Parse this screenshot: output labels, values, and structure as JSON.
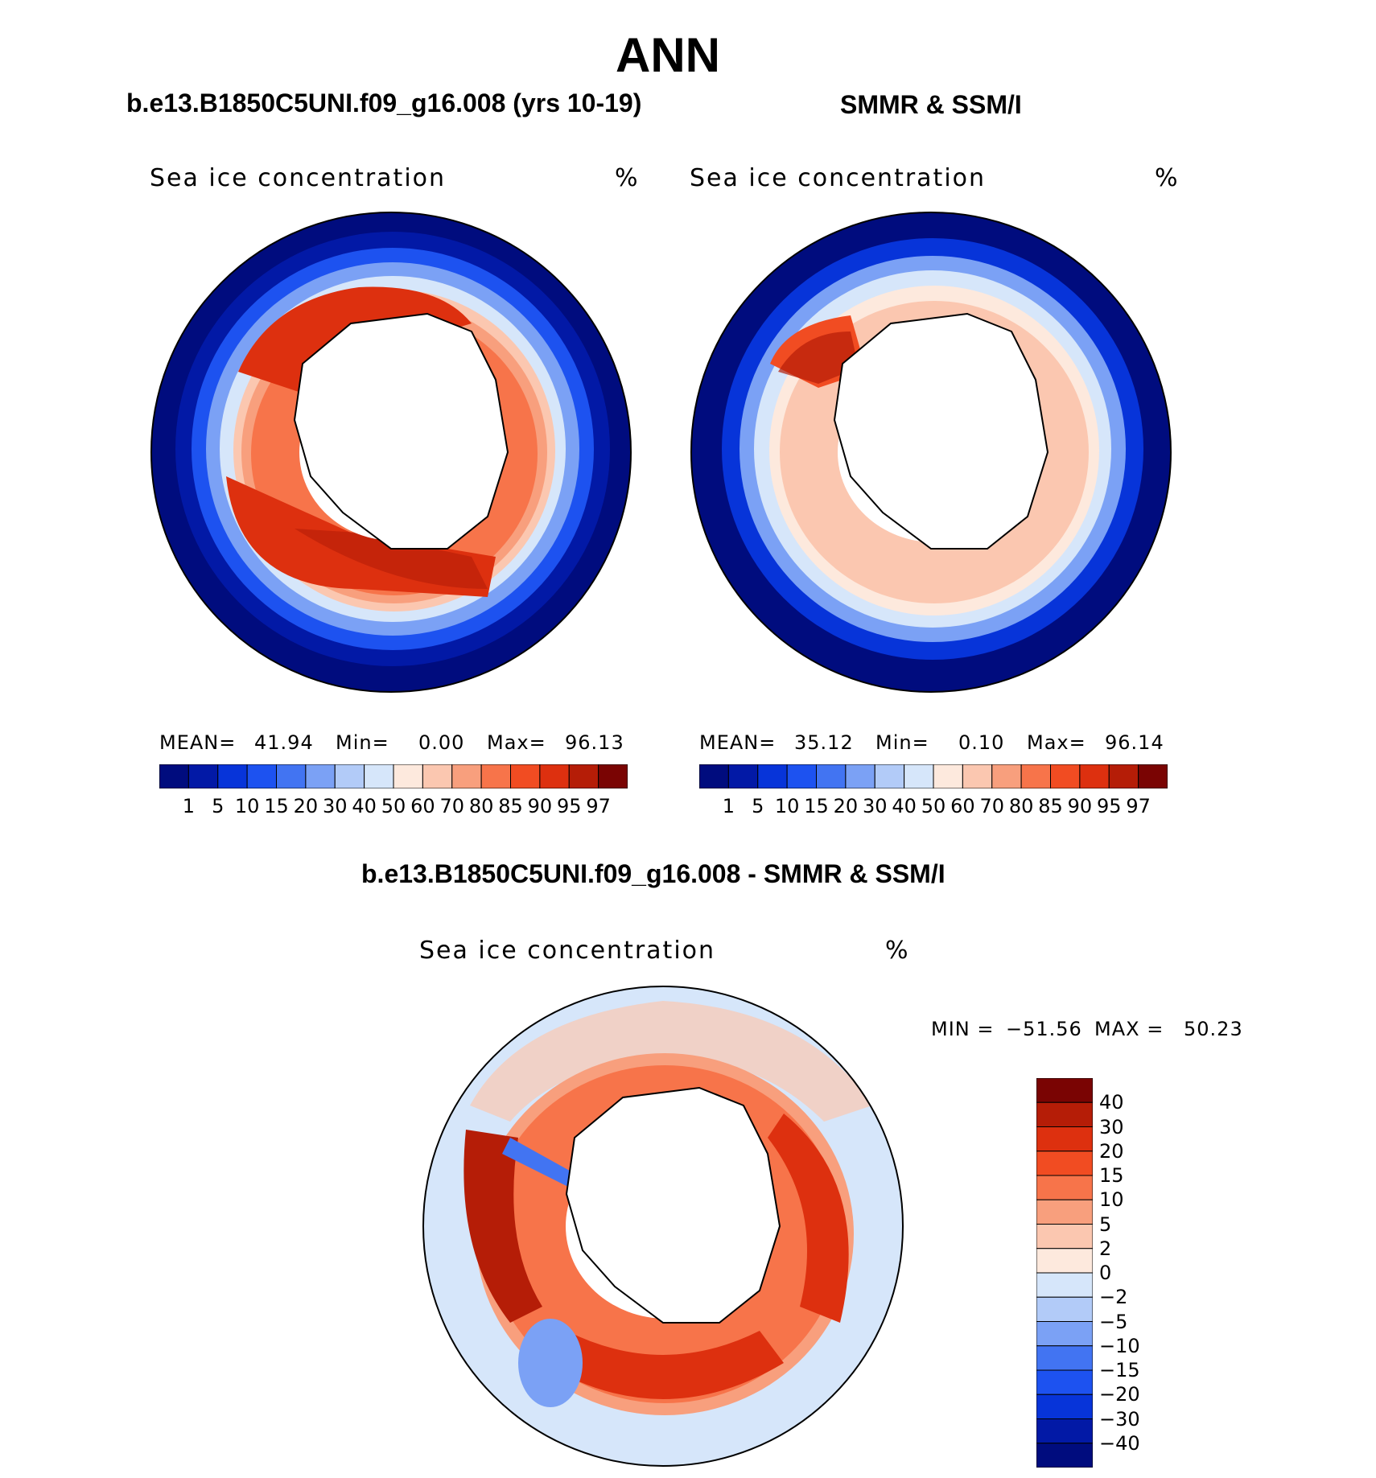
{
  "title": "ANN",
  "panels": {
    "model": {
      "title": "b.e13.B1850C5UNI.f09_g16.008 (yrs 10-19)",
      "label": "Sea ice concentration",
      "unit": "%",
      "mean_label": "MEAN=",
      "mean": "41.94",
      "min_label": "Min=",
      "min": "0.00",
      "max_label": "Max=",
      "max": "96.13"
    },
    "obs": {
      "title": "SMMR & SSM/I",
      "label": "Sea ice concentration",
      "unit": "%",
      "mean_label": "MEAN=",
      "mean": "35.12",
      "min_label": "Min=",
      "min": "0.10",
      "max_label": "Max=",
      "max": "96.14"
    },
    "diff": {
      "title": "b.e13.B1850C5UNI.f09_g16.008 - SMMR & SSM/I",
      "label": "Sea ice concentration",
      "unit": "%",
      "min_label": "MIN =",
      "min": "−51.56",
      "max_label": "MAX =",
      "max": "50.23"
    }
  },
  "colorbar_levels": [
    "1",
    "5",
    "10",
    "15",
    "20",
    "30",
    "40",
    "50",
    "60",
    "70",
    "80",
    "85",
    "90",
    "95",
    "97"
  ],
  "colorbar_colors": [
    "#000c7e",
    "#0219a6",
    "#0734d9",
    "#1d52f0",
    "#4274f2",
    "#7ba1f5",
    "#b2cbf8",
    "#d6e6fa",
    "#fde9dd",
    "#fbc7b0",
    "#f89f7d",
    "#f7744a",
    "#f14c22",
    "#dd300f",
    "#b51d07",
    "#7a0403"
  ],
  "diff_levels": [
    "40",
    "30",
    "20",
    "15",
    "10",
    "5",
    "2",
    "0",
    "−2",
    "−5",
    "−10",
    "−15",
    "−20",
    "−30",
    "−40"
  ],
  "diff_colors": [
    "#7a0403",
    "#b51d07",
    "#dd300f",
    "#f14c22",
    "#f7744a",
    "#f89f7d",
    "#fbc7b0",
    "#fde9dd",
    "#d6e6fa",
    "#b2cbf8",
    "#7ba1f5",
    "#4274f2",
    "#1d52f0",
    "#0734d9",
    "#0219a6",
    "#000c7e"
  ]
}
